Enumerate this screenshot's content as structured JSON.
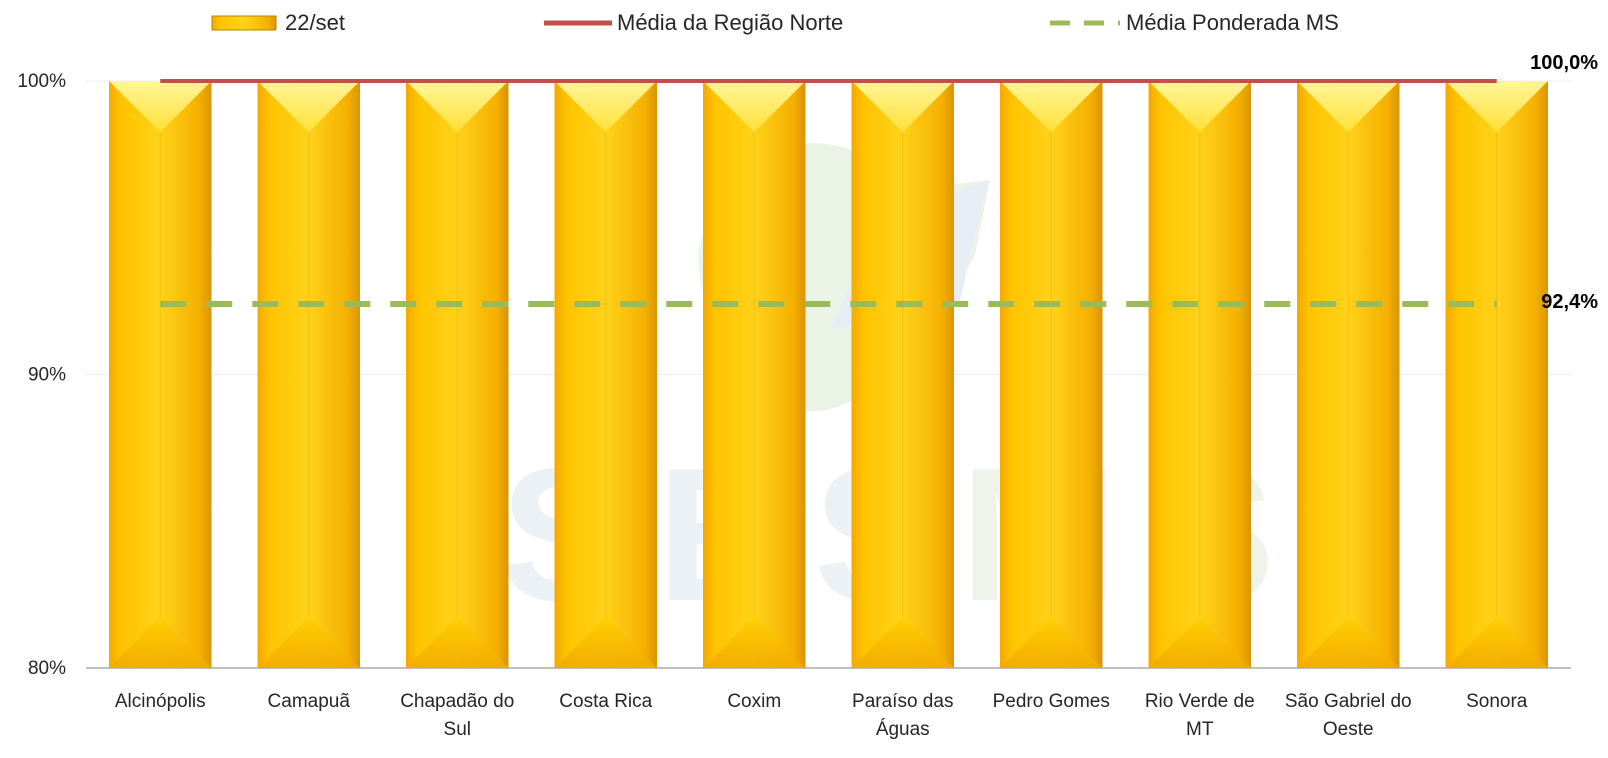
{
  "chart_data": {
    "type": "bar",
    "categories": [
      "Alcinópolis",
      "Camapuã",
      "Chapadão do Sul",
      "Costa Rica",
      "Coxim",
      "Paraíso das Águas",
      "Pedro Gomes",
      "Rio Verde de MT",
      "São Gabriel do Oeste",
      "Sonora"
    ],
    "category_lines": [
      [
        "Alcinópolis"
      ],
      [
        "Camapuã"
      ],
      [
        "Chapadão do",
        "Sul"
      ],
      [
        "Costa Rica"
      ],
      [
        "Coxim"
      ],
      [
        "Paraíso das",
        "Águas"
      ],
      [
        "Pedro Gomes"
      ],
      [
        "Rio Verde de",
        "MT"
      ],
      [
        "São Gabriel do",
        "Oeste"
      ],
      [
        "Sonora"
      ]
    ],
    "series": [
      {
        "name": "22/set",
        "values": [
          100,
          100,
          100,
          100,
          100,
          100,
          100,
          100,
          100,
          100
        ],
        "color": "#FFC000"
      },
      {
        "name": "Média da Região Norte",
        "type": "line",
        "value": 100,
        "label": "100,0%",
        "color": "#C0504D"
      },
      {
        "name": "Média Ponderada MS",
        "type": "line",
        "style": "dashed",
        "value": 92.4,
        "label": "92,4%",
        "color": "#9BBB59"
      }
    ],
    "ylim": [
      80,
      100
    ],
    "yticks": [
      80,
      90,
      100
    ],
    "ytick_labels": [
      "80%",
      "90%",
      "100%"
    ],
    "grid": true,
    "legend_position": "top"
  }
}
